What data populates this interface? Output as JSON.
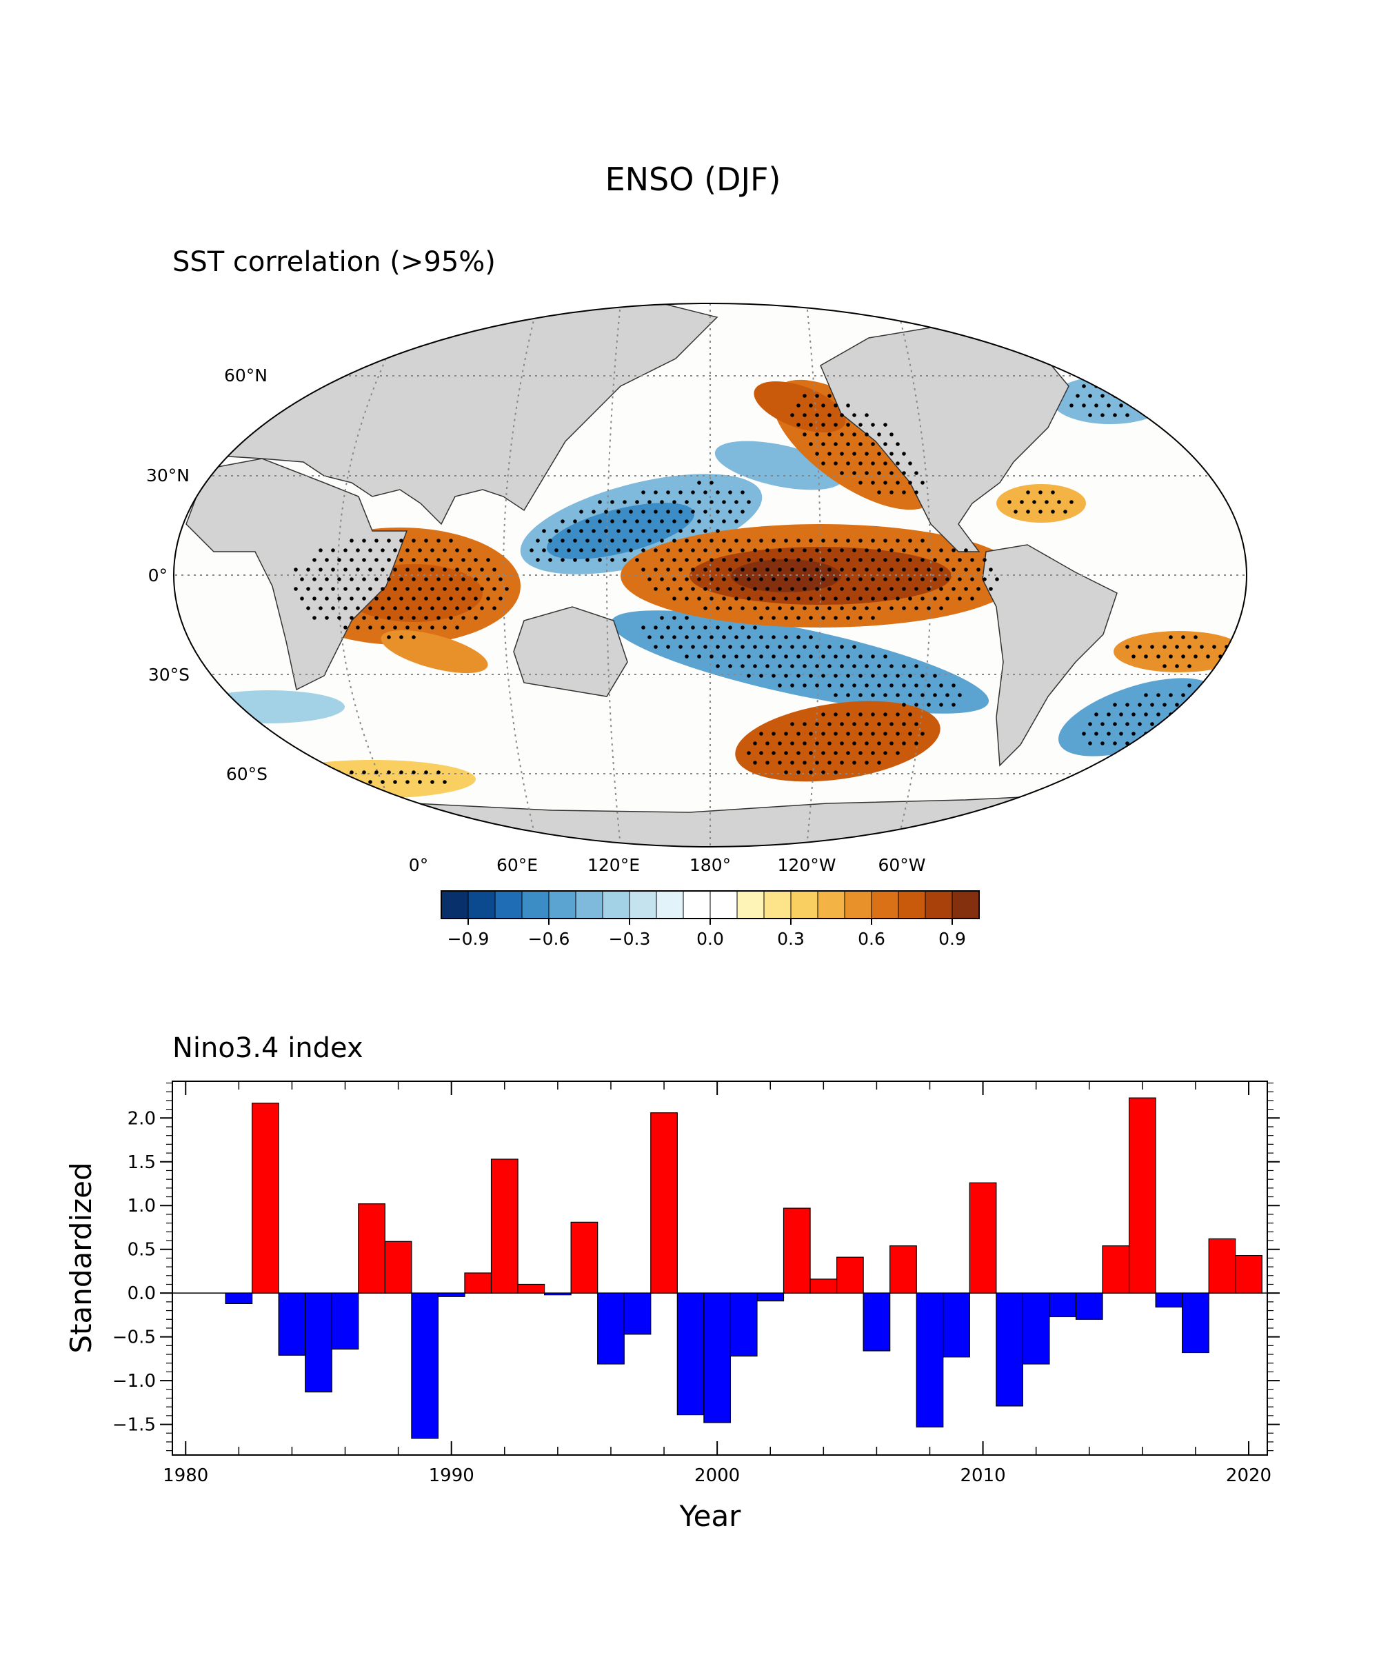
{
  "figure_title": "ENSO (DJF)",
  "map": {
    "title": "SST correlation (>95%)",
    "lat_labels": [
      "60°N",
      "30°N",
      "0°",
      "30°S",
      "60°S"
    ],
    "lon_labels": [
      "0°",
      "60°E",
      "120°E",
      "180°",
      "120°W",
      "60°W"
    ],
    "colorbar": {
      "min": -1.0,
      "max": 1.0,
      "step": 0.1,
      "ticks": [
        "−0.9",
        "−0.6",
        "−0.3",
        "0.0",
        "0.3",
        "0.6",
        "0.9"
      ],
      "colors": [
        "#08306b",
        "#0b4a8e",
        "#1f6eb5",
        "#3c8dc6",
        "#5ba3d1",
        "#7fb9dc",
        "#a3d1e6",
        "#c4e3ef",
        "#e2f3f9",
        "#ffffff",
        "#ffffff",
        "#fff4b8",
        "#fde38a",
        "#f9cf62",
        "#f3b345",
        "#e8902a",
        "#da7117",
        "#c95a0c",
        "#a9410a",
        "#84300f"
      ]
    }
  },
  "chart_data": {
    "type": "bar",
    "title": "Nino3.4 index",
    "xlabel": "Year",
    "ylabel": "Standardized",
    "xlim": [
      1979.5,
      2020.7
    ],
    "ylim": [
      -1.85,
      2.42
    ],
    "xticks": [
      1980,
      1990,
      2000,
      2010,
      2020
    ],
    "yticks": [
      -1.5,
      -1.0,
      -0.5,
      0.0,
      0.5,
      1.0,
      1.5,
      2.0
    ],
    "ytick_labels": [
      "−1.5",
      "−1.0",
      "−0.5",
      "0.0",
      "0.5",
      "1.0",
      "1.5",
      "2.0"
    ],
    "positive_color": "#ff0000",
    "negative_color": "#0000ff",
    "years": [
      1982,
      1983,
      1984,
      1985,
      1986,
      1987,
      1988,
      1989,
      1990,
      1991,
      1992,
      1993,
      1994,
      1995,
      1996,
      1997,
      1998,
      1999,
      2000,
      2001,
      2002,
      2003,
      2004,
      2005,
      2006,
      2007,
      2008,
      2009,
      2010,
      2011,
      2012,
      2013,
      2014,
      2015,
      2016,
      2017,
      2018,
      2019,
      2020
    ],
    "values": [
      -0.12,
      2.17,
      -0.71,
      -1.13,
      -0.64,
      1.02,
      0.59,
      -1.66,
      -0.04,
      0.23,
      1.53,
      0.1,
      -0.02,
      0.81,
      -0.81,
      -0.47,
      2.06,
      -1.39,
      -1.48,
      -0.72,
      -0.09,
      0.97,
      0.16,
      0.41,
      -0.66,
      0.54,
      -1.53,
      -0.73,
      1.26,
      -1.29,
      -0.81,
      -0.27,
      -0.3,
      0.54,
      2.23,
      -0.16,
      -0.68,
      0.62,
      0.43
    ]
  }
}
